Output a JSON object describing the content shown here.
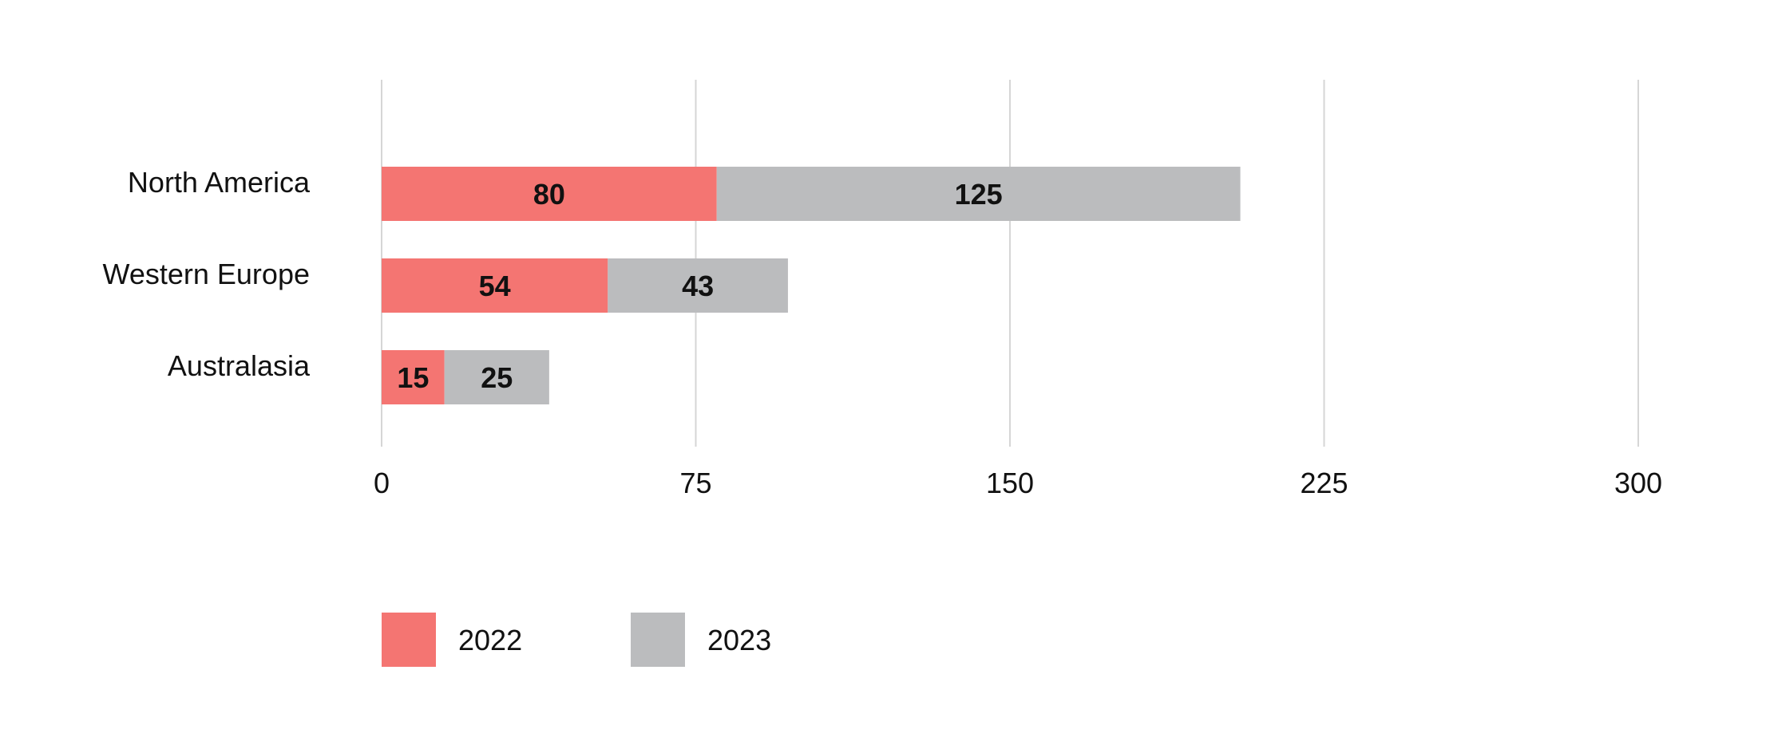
{
  "chart_data": {
    "type": "bar",
    "orientation": "horizontal",
    "stacked": true,
    "title": "",
    "xlabel": "",
    "ylabel": "",
    "categories": [
      "North America",
      "Western Europe",
      "Australasia"
    ],
    "series": [
      {
        "name": "2022",
        "values": [
          80,
          54,
          15
        ],
        "color": "#f47572"
      },
      {
        "name": "2023",
        "values": [
          125,
          43,
          25
        ],
        "color": "#bbbcbe"
      }
    ],
    "xlim": [
      0,
      300
    ],
    "xticks": [
      "0",
      "75",
      "150",
      "225",
      "300"
    ],
    "grid": "vertical",
    "data_labels": true,
    "legend_position": "bottom-left"
  }
}
